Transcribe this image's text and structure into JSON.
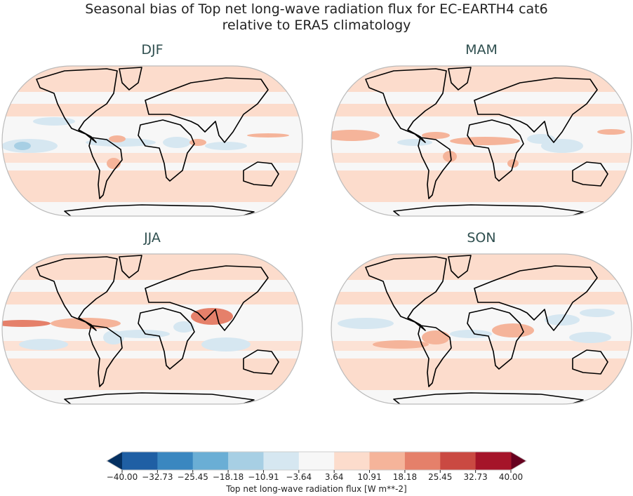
{
  "title": {
    "line1": "Seasonal bias of Top net long-wave radiation flux for EC-EARTH4 cat6",
    "line2": "relative to ERA5 climatology"
  },
  "panels": [
    {
      "label": "DJF"
    },
    {
      "label": "MAM"
    },
    {
      "label": "JJA"
    },
    {
      "label": "SON"
    }
  ],
  "chart_data": {
    "type": "heatmap",
    "projection": "robinson",
    "colormap": "RdBu_r",
    "colorbar": {
      "label": "Top net long-wave radiation flux [W m**-2]",
      "ticks": [
        "−40.00",
        "−32.73",
        "−25.45",
        "−18.18",
        "−10.91",
        "−3.64",
        "3.64",
        "10.91",
        "18.18",
        "25.45",
        "32.73",
        "40.00"
      ],
      "range": [
        -40,
        40
      ],
      "extend": "both",
      "colors": [
        "#1f5fa4",
        "#3a87c0",
        "#6aaed5",
        "#a7cfe4",
        "#d6e7f1",
        "#f7f7f7",
        "#fcdccc",
        "#f5b49a",
        "#e5806a",
        "#ca4942",
        "#a51429"
      ],
      "extend_colors": {
        "low": "#053061",
        "high": "#67001f"
      }
    }
  }
}
